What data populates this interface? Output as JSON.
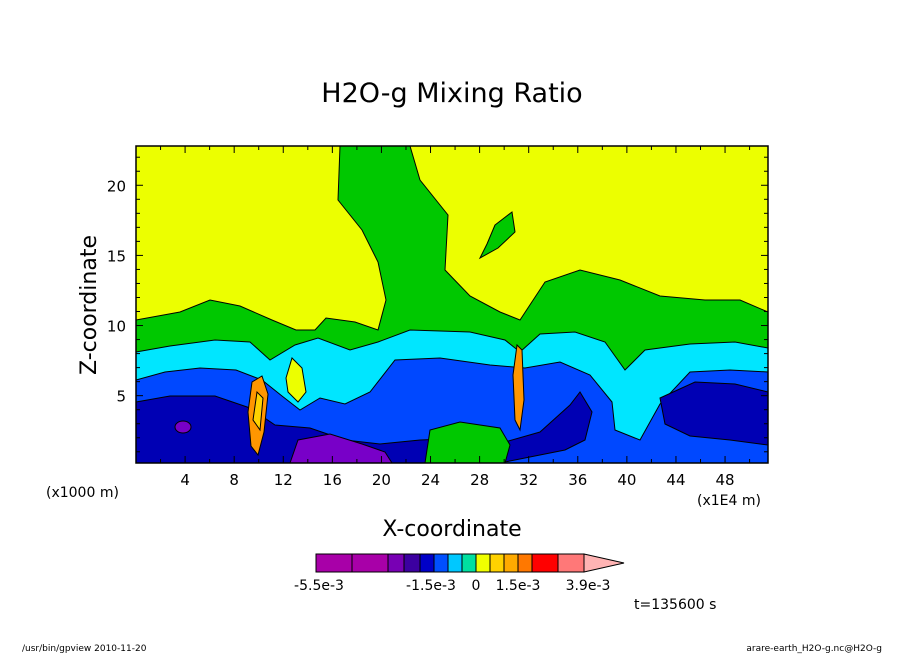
{
  "chart_data": {
    "type": "heatmap",
    "title": "H2O-g Mixing Ratio",
    "xlabel": "X-coordinate",
    "ylabel": "Z-coordinate",
    "x_unit_left": "(x1000 m)",
    "x_unit_right": "(x1E4 m)",
    "x_ticks": [
      4,
      8,
      12,
      16,
      20,
      24,
      28,
      32,
      36,
      40,
      44,
      48
    ],
    "y_ticks": [
      5,
      10,
      15,
      20
    ],
    "xlim": [
      0,
      51.5
    ],
    "ylim": [
      0.2,
      22.8
    ],
    "time_label": "t=135600 s",
    "colorbar": {
      "labels": [
        "-5.5e-3",
        "-1.5e-3",
        "0",
        "1.5e-3",
        "3.9e-3"
      ],
      "colors": [
        "#a800a8",
        "#a800a8",
        "#7800b4",
        "#3c00a0",
        "#0000c8",
        "#0050ff",
        "#00c8ff",
        "#00e0a0",
        "#f0ff00",
        "#ffd200",
        "#ffaa00",
        "#ff7800",
        "#ff0000",
        "#ff7878",
        "#ffb4b4"
      ]
    },
    "regions": [
      {
        "name": "background",
        "color": "#00c800"
      },
      {
        "name": "upper-dry-left",
        "color": "#ecff00"
      },
      {
        "name": "upper-dry-right",
        "color": "#ecff00"
      },
      {
        "name": "cyan-layer",
        "color": "#00e6ff"
      },
      {
        "name": "blue-layer",
        "color": "#0048ff"
      },
      {
        "name": "navy-core",
        "color": "#0000b4"
      },
      {
        "name": "purple-core",
        "color": "#7800c8"
      },
      {
        "name": "plume-orange",
        "color": "#ff9600"
      }
    ]
  },
  "footer": {
    "left": "/usr/bin/gpview  2010-11-20",
    "right": "arare-earth_H2O-g.nc@H2O-g"
  }
}
